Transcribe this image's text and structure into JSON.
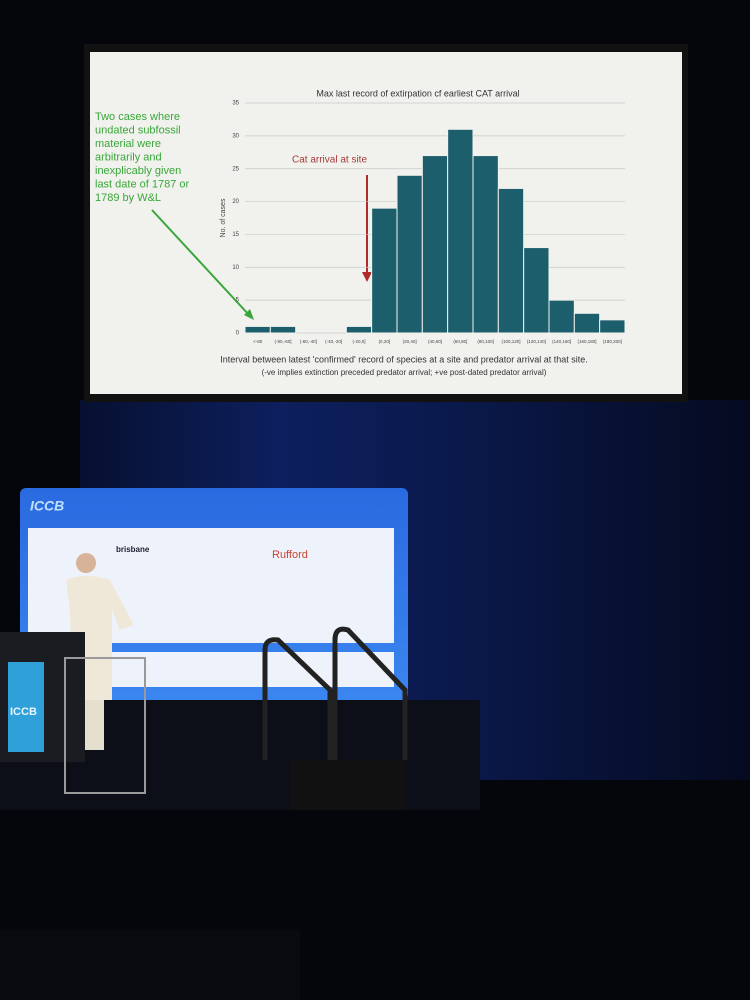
{
  "chart_data": {
    "type": "bar",
    "title": "Max last record of extirpation cf earliest CAT arrival",
    "y_label": "No. of cases",
    "x_label": [
      "Interval between latest 'confirmed' record of species at a site and predator arrival at that site.",
      "(-ve implies extinction preceded predator arrival; +ve post-dated predator arrival)"
    ],
    "annotations": [
      [
        "Two cases where",
        "undated subfossil",
        "material were",
        "arbitrarily and",
        "inexplicably given",
        "last date of 1787 or",
        "1789 by W&L"
      ],
      [
        "Cat arrival at site"
      ]
    ],
    "categories": [
      "<-80",
      "(-80,-60]",
      "(-60,-40]",
      "(-40,-20]",
      "(-20,0]",
      "(0,20]",
      "(20,40]",
      "(40,60]",
      "(60,80]",
      "(80,100]",
      "(100,120]",
      "(120,140]",
      "(140,160]",
      "(160,180]",
      "(180,200]"
    ],
    "values": [
      1,
      1,
      0,
      0,
      1,
      19,
      24,
      27,
      31,
      27,
      22,
      13,
      5,
      3,
      2
    ],
    "color": "#1d5e6c",
    "ylim": [
      0,
      35
    ],
    "yticks": [
      0,
      5,
      10,
      15,
      20,
      25,
      30,
      35
    ],
    "grid": true
  },
  "stage": {
    "banner_title": "ICCB",
    "podium_title": "ICCB",
    "sponsor": "Rufford",
    "partner": "brisbane"
  }
}
